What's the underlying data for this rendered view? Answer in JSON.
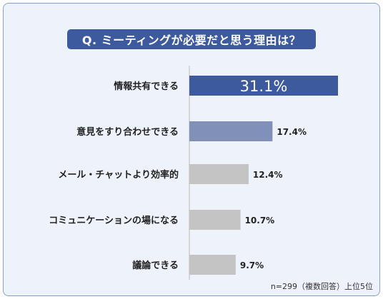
{
  "title": "Q. ミーティングが必要だと思う理由は？",
  "footnote": "n=299（複数回答）上位5位",
  "colors": {
    "background": "#eef3fb",
    "title_bg": "#3d5a9e",
    "bar_top": "#3d5a9e",
    "bar_second": "#8090b8",
    "bar_other": "#c4c4c4"
  },
  "chart_data": {
    "type": "bar",
    "orientation": "horizontal",
    "title": "Q. ミーティングが必要だと思う理由は？",
    "categories": [
      "情報共有できる",
      "意見をすり合わせできる",
      "メール・チャットより効率的",
      "コミュニケーションの場になる",
      "議論できる"
    ],
    "values": [
      31.1,
      17.4,
      12.4,
      10.7,
      9.7
    ],
    "value_labels": [
      "31.1%",
      "17.4%",
      "12.4%",
      "10.7%",
      "9.7%"
    ],
    "unit": "%",
    "xlim": [
      0,
      31.1
    ],
    "grid": false,
    "legend": "none"
  }
}
